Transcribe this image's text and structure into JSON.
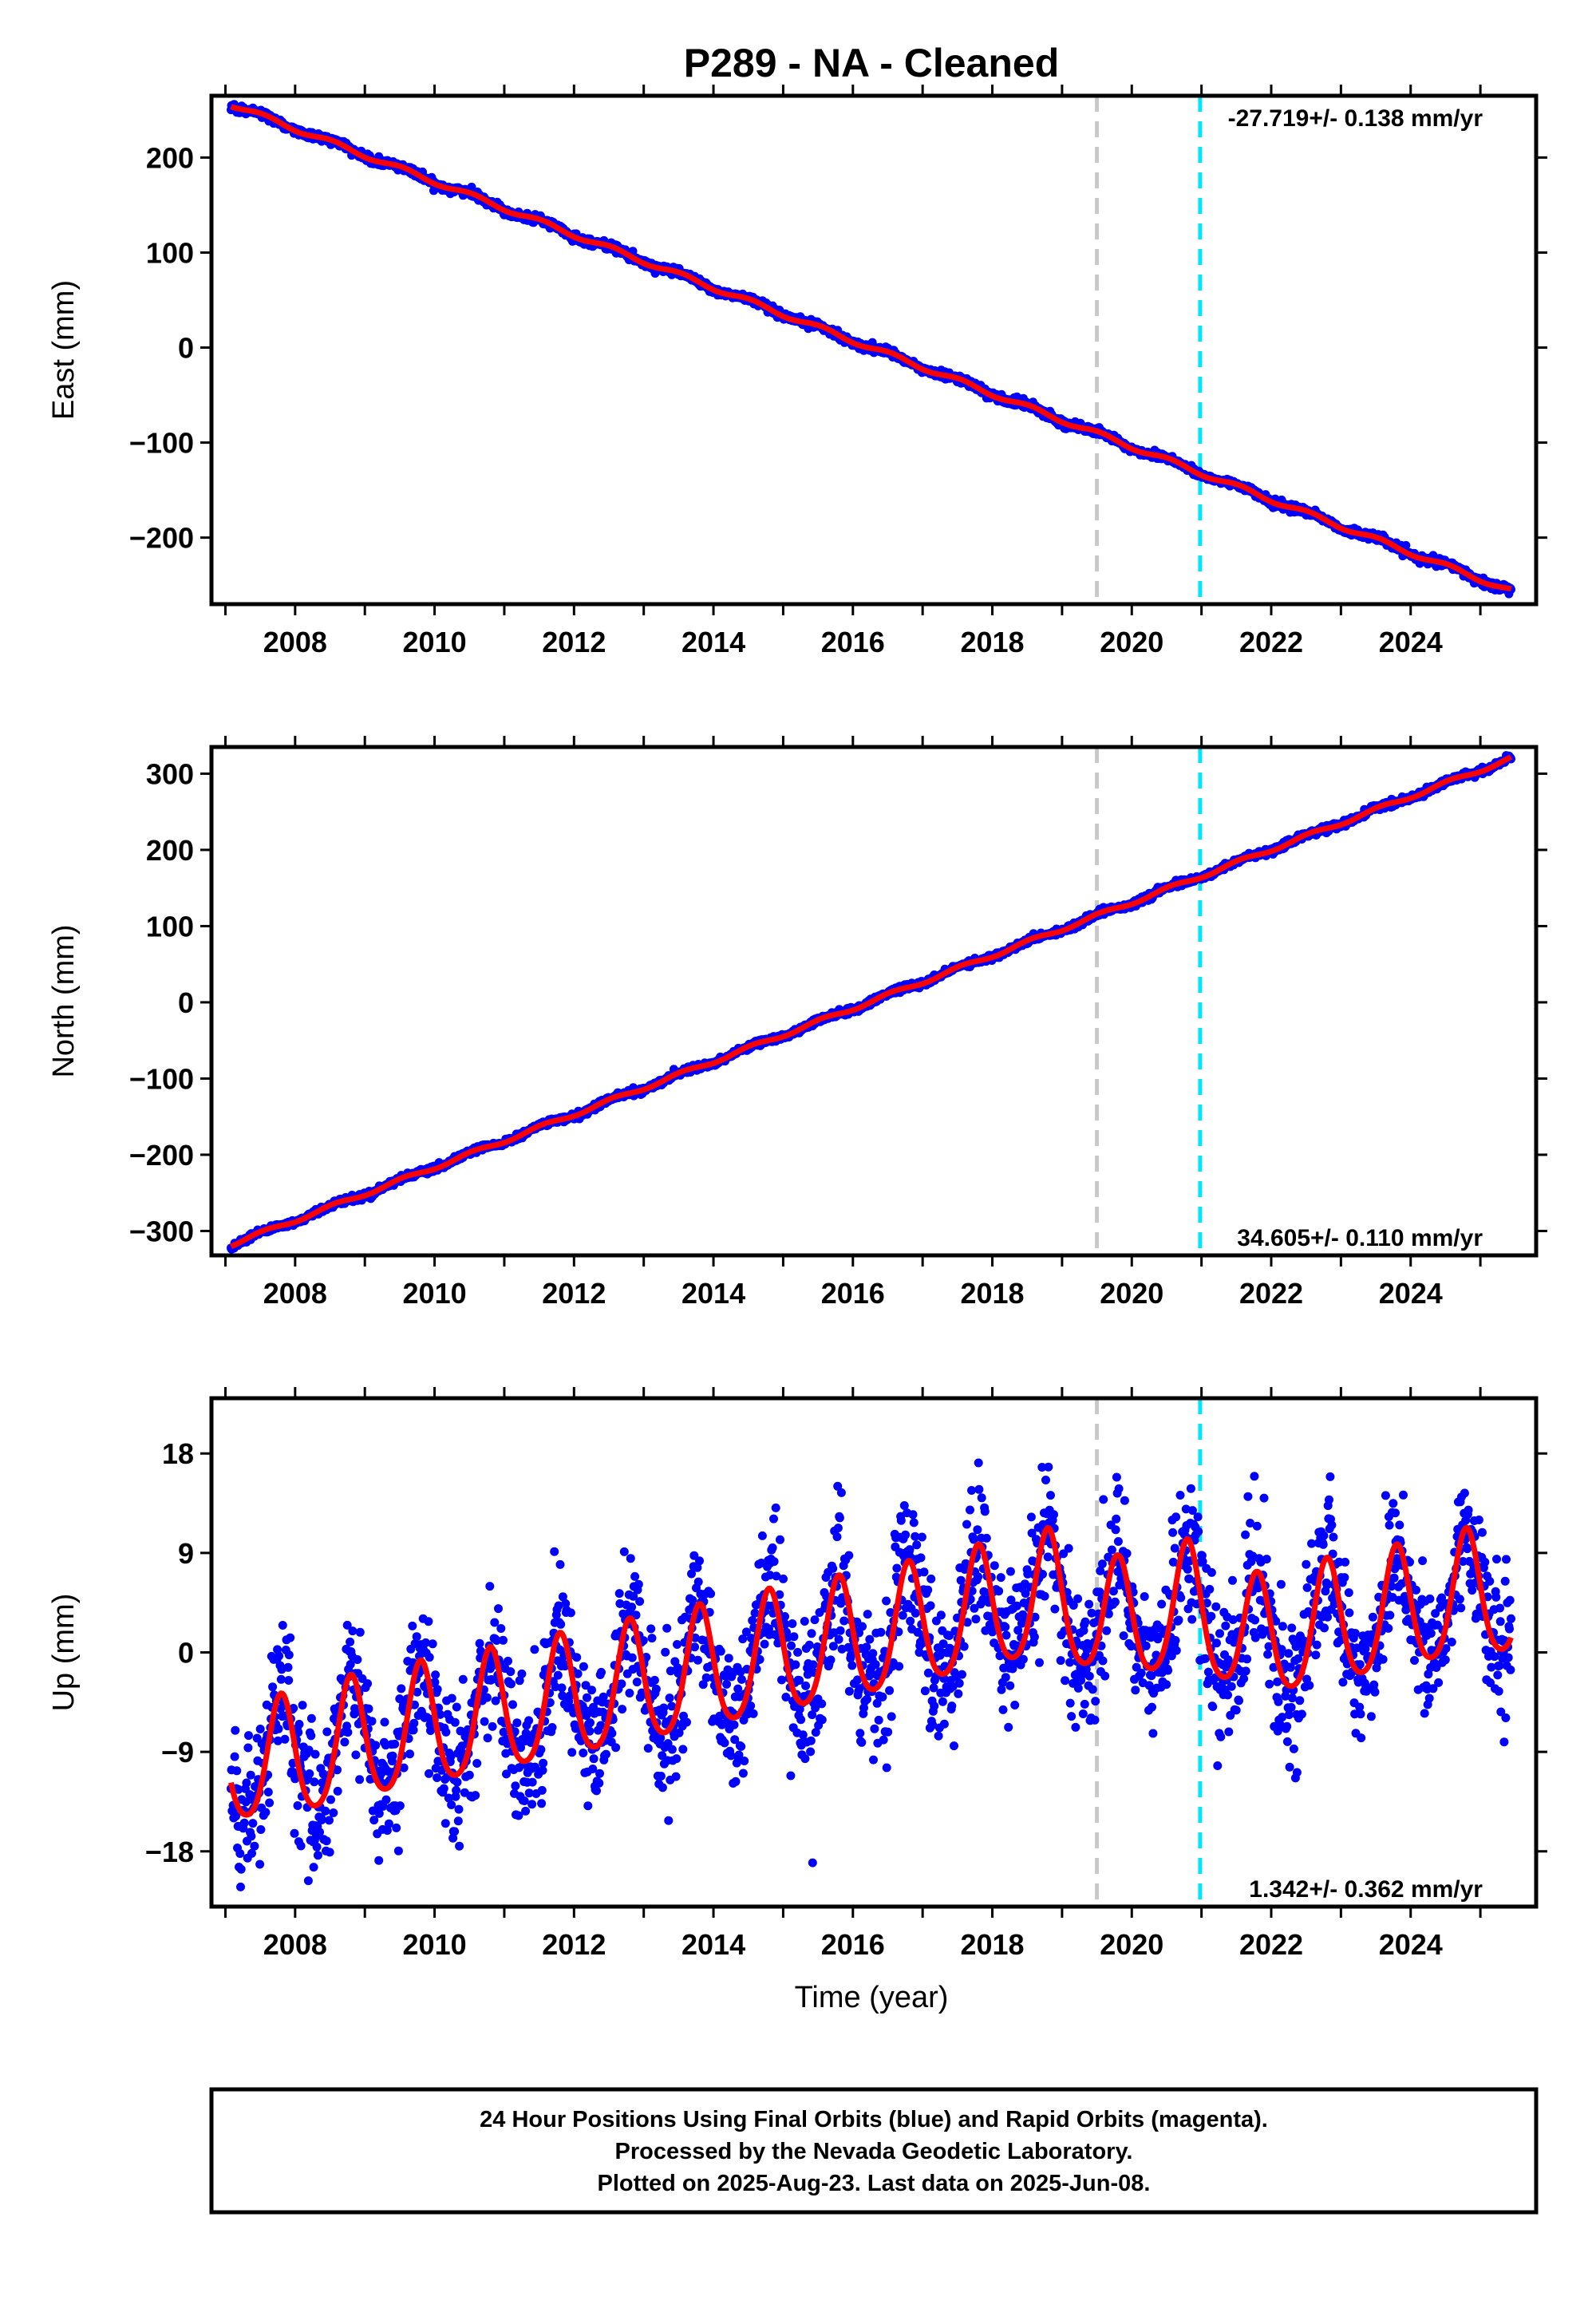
{
  "title": "P289  - NA - Cleaned",
  "xlabel": "Time (year)",
  "x_ticks": [
    2008,
    2010,
    2012,
    2014,
    2016,
    2018,
    2020,
    2022,
    2024
  ],
  "x_ticks_labels": [
    "2008",
    "2010",
    "2012",
    "2014",
    "2016",
    "2018",
    "2020",
    "2022",
    "2024"
  ],
  "colors": {
    "data": "#0000ff",
    "model": "#ff0000",
    "gray_line": "#c8c8c8",
    "cyan_line": "#00e5ff",
    "frame": "#000000"
  },
  "chart_data": [
    {
      "type": "scatter",
      "name": "east",
      "ylabel": "East (mm)",
      "xlim": [
        2006.8,
        2025.8
      ],
      "ylim": [
        -270,
        265
      ],
      "yticks": [
        -200,
        -100,
        0,
        100,
        200
      ],
      "ytick_labels": [
        "−200",
        "−100",
        "0",
        "100",
        "200"
      ],
      "rate_label": "-27.719+/- 0.138 mm/yr",
      "rate_position": "top-right",
      "start": {
        "year": 2007.08,
        "value": 256
      },
      "end": {
        "year": 2025.44,
        "value": -256
      },
      "seasonal_amplitude": 2.5,
      "noise": 2.0,
      "vertical_lines": [
        {
          "year": 2019.5,
          "color": "gray",
          "style": "dashed"
        },
        {
          "year": 2020.98,
          "color": "cyan",
          "style": "dashed"
        }
      ],
      "series": [
        {
          "name": "24 hour positions",
          "style": "points",
          "color": "blue"
        },
        {
          "name": "model fit",
          "style": "line",
          "color": "red"
        }
      ]
    },
    {
      "type": "scatter",
      "name": "north",
      "ylabel": "North (mm)",
      "xlim": [
        2006.8,
        2025.8
      ],
      "ylim": [
        -332,
        335
      ],
      "yticks": [
        -300,
        -200,
        -100,
        0,
        100,
        200,
        300
      ],
      "ytick_labels": [
        "−300",
        "−200",
        "−100",
        "0",
        "100",
        "200",
        "300"
      ],
      "rate_label": "34.605+/- 0.110 mm/yr",
      "rate_position": "bottom-right",
      "start": {
        "year": 2007.08,
        "value": -318
      },
      "end": {
        "year": 2025.44,
        "value": 320
      },
      "seasonal_amplitude": 2.5,
      "noise": 2.0,
      "vertical_lines": [
        {
          "year": 2019.5,
          "color": "gray",
          "style": "dashed"
        },
        {
          "year": 2020.98,
          "color": "cyan",
          "style": "dashed"
        }
      ],
      "series": [
        {
          "name": "24 hour positions",
          "style": "points",
          "color": "blue"
        },
        {
          "name": "model fit",
          "style": "line",
          "color": "red"
        }
      ]
    },
    {
      "type": "scatter",
      "name": "up",
      "ylabel": "Up (mm)",
      "xlim": [
        2006.8,
        2025.8
      ],
      "ylim": [
        -23,
        23
      ],
      "yticks": [
        -18,
        -9,
        0,
        9,
        18
      ],
      "ytick_labels": [
        "−18",
        "−9",
        "0",
        "9",
        "18"
      ],
      "rate_label": "1.342+/- 0.362 mm/yr",
      "rate_position": "bottom-right",
      "start": {
        "year": 2007.08,
        "value": -13
      },
      "end": {
        "year": 2025.44,
        "value": 4
      },
      "seasonal_amplitude": 5.5,
      "noise": 3.2,
      "model_peaks": [
        {
          "year": 2007.8,
          "value": -4.5
        },
        {
          "year": 2008.8,
          "value": -2.8
        },
        {
          "year": 2009.8,
          "value": -1.5
        },
        {
          "year": 2010.8,
          "value": -0.3
        },
        {
          "year": 2011.8,
          "value": 1.0
        },
        {
          "year": 2012.8,
          "value": 2.3
        },
        {
          "year": 2013.8,
          "value": 3.6
        },
        {
          "year": 2014.8,
          "value": 5.0
        },
        {
          "year": 2015.8,
          "value": 6.2
        },
        {
          "year": 2016.8,
          "value": 7.5
        },
        {
          "year": 2017.8,
          "value": 9.0
        },
        {
          "year": 2018.8,
          "value": 10.5
        },
        {
          "year": 2019.8,
          "value": 8.0
        },
        {
          "year": 2020.8,
          "value": 9.5
        },
        {
          "year": 2021.8,
          "value": 6.5
        },
        {
          "year": 2022.8,
          "value": 7.8
        },
        {
          "year": 2023.8,
          "value": 9.0
        },
        {
          "year": 2024.8,
          "value": 10.5
        }
      ],
      "vertical_lines": [
        {
          "year": 2019.5,
          "color": "gray",
          "style": "dashed"
        },
        {
          "year": 2020.98,
          "color": "cyan",
          "style": "dashed"
        }
      ],
      "series": [
        {
          "name": "24 hour positions",
          "style": "points",
          "color": "blue"
        },
        {
          "name": "model fit",
          "style": "line",
          "color": "red"
        }
      ]
    }
  ],
  "footer": {
    "line1": "24 Hour Positions Using Final Orbits (blue) and Rapid Orbits (magenta).",
    "line2": "Processed by the Nevada Geodetic Laboratory.",
    "line3": "Plotted on 2025-Aug-23. Last data on 2025-Jun-08."
  }
}
